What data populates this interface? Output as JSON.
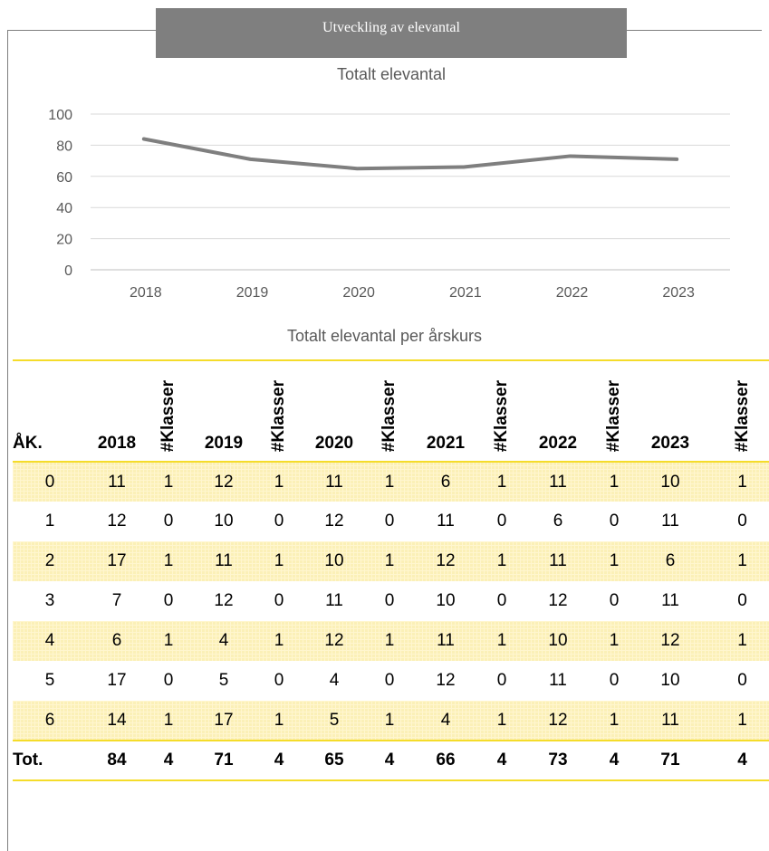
{
  "header": {
    "title": "Utveckling av elevantal"
  },
  "chart_data": {
    "type": "line",
    "title": "Totalt elevantal",
    "xlabel": "",
    "ylabel": "",
    "categories": [
      "2018",
      "2019",
      "2020",
      "2021",
      "2022",
      "2023"
    ],
    "series": [
      {
        "values": [
          84,
          71,
          65,
          66,
          73,
          71
        ]
      }
    ],
    "ylim": [
      0,
      100
    ],
    "yticks": [
      0,
      20,
      40,
      60,
      80,
      100
    ],
    "grid": true,
    "line_color": "#7f7f7f"
  },
  "table": {
    "title": "Totalt elevantal per årskurs",
    "headers": [
      "ÅK.",
      "2018",
      "#Klasser",
      "2019",
      "#Klasser",
      "2020",
      "#Klasser",
      "2021",
      "#Klasser",
      "2022",
      "#Klasser",
      "2023",
      "#Klasser"
    ],
    "rows": [
      [
        "0",
        "11",
        "1",
        "12",
        "1",
        "11",
        "1",
        "6",
        "1",
        "11",
        "1",
        "10",
        "1"
      ],
      [
        "1",
        "12",
        "0",
        "10",
        "0",
        "12",
        "0",
        "11",
        "0",
        "6",
        "0",
        "11",
        "0"
      ],
      [
        "2",
        "17",
        "1",
        "11",
        "1",
        "10",
        "1",
        "12",
        "1",
        "11",
        "1",
        "6",
        "1"
      ],
      [
        "3",
        "7",
        "0",
        "12",
        "0",
        "11",
        "0",
        "10",
        "0",
        "12",
        "0",
        "11",
        "0"
      ],
      [
        "4",
        "6",
        "1",
        "4",
        "1",
        "12",
        "1",
        "11",
        "1",
        "10",
        "1",
        "12",
        "1"
      ],
      [
        "5",
        "17",
        "0",
        "5",
        "0",
        "4",
        "0",
        "12",
        "0",
        "11",
        "0",
        "10",
        "0"
      ],
      [
        "6",
        "14",
        "1",
        "17",
        "1",
        "5",
        "1",
        "4",
        "1",
        "12",
        "1",
        "11",
        "1"
      ]
    ],
    "total": [
      "Tot.",
      "84",
      "4",
      "71",
      "4",
      "65",
      "4",
      "66",
      "4",
      "73",
      "4",
      "71",
      "4"
    ],
    "band_color": "#fbf0b7",
    "rule_color": "#f5dc2a"
  }
}
